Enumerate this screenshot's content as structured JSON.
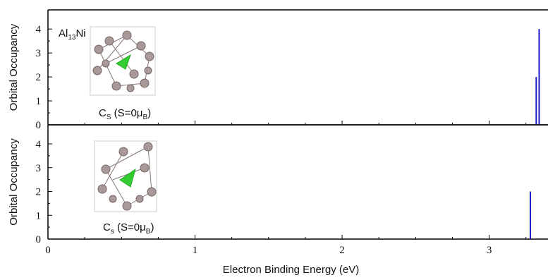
{
  "chart_data": [
    {
      "type": "bar",
      "label": [
        "Al",
        "13",
        "Ni"
      ],
      "annotation": [
        "C",
        "S",
        " (S=0μ",
        "B",
        ")"
      ],
      "ylabel": "Orbital Occupancy",
      "x": [
        3.32,
        3.34
      ],
      "values": [
        2,
        4
      ],
      "color": "#1c1cc8",
      "ylim": [
        0,
        4.8
      ],
      "yticks": [
        0,
        1,
        2,
        3,
        4
      ]
    },
    {
      "type": "bar",
      "annotation": [
        "C",
        "s",
        " (S=0μ",
        "B",
        ")"
      ],
      "ylabel": "Orbital Occupancy",
      "xlabel": "Electron Binding Energy (eV)",
      "x": [
        3.28
      ],
      "values": [
        2
      ],
      "color": "#1c1cc8",
      "ylim": [
        0,
        4.8
      ],
      "yticks": [
        0,
        1,
        2,
        3,
        4
      ],
      "xlim": [
        0,
        3.4
      ],
      "xticks": [
        0,
        1,
        2,
        3
      ]
    }
  ]
}
